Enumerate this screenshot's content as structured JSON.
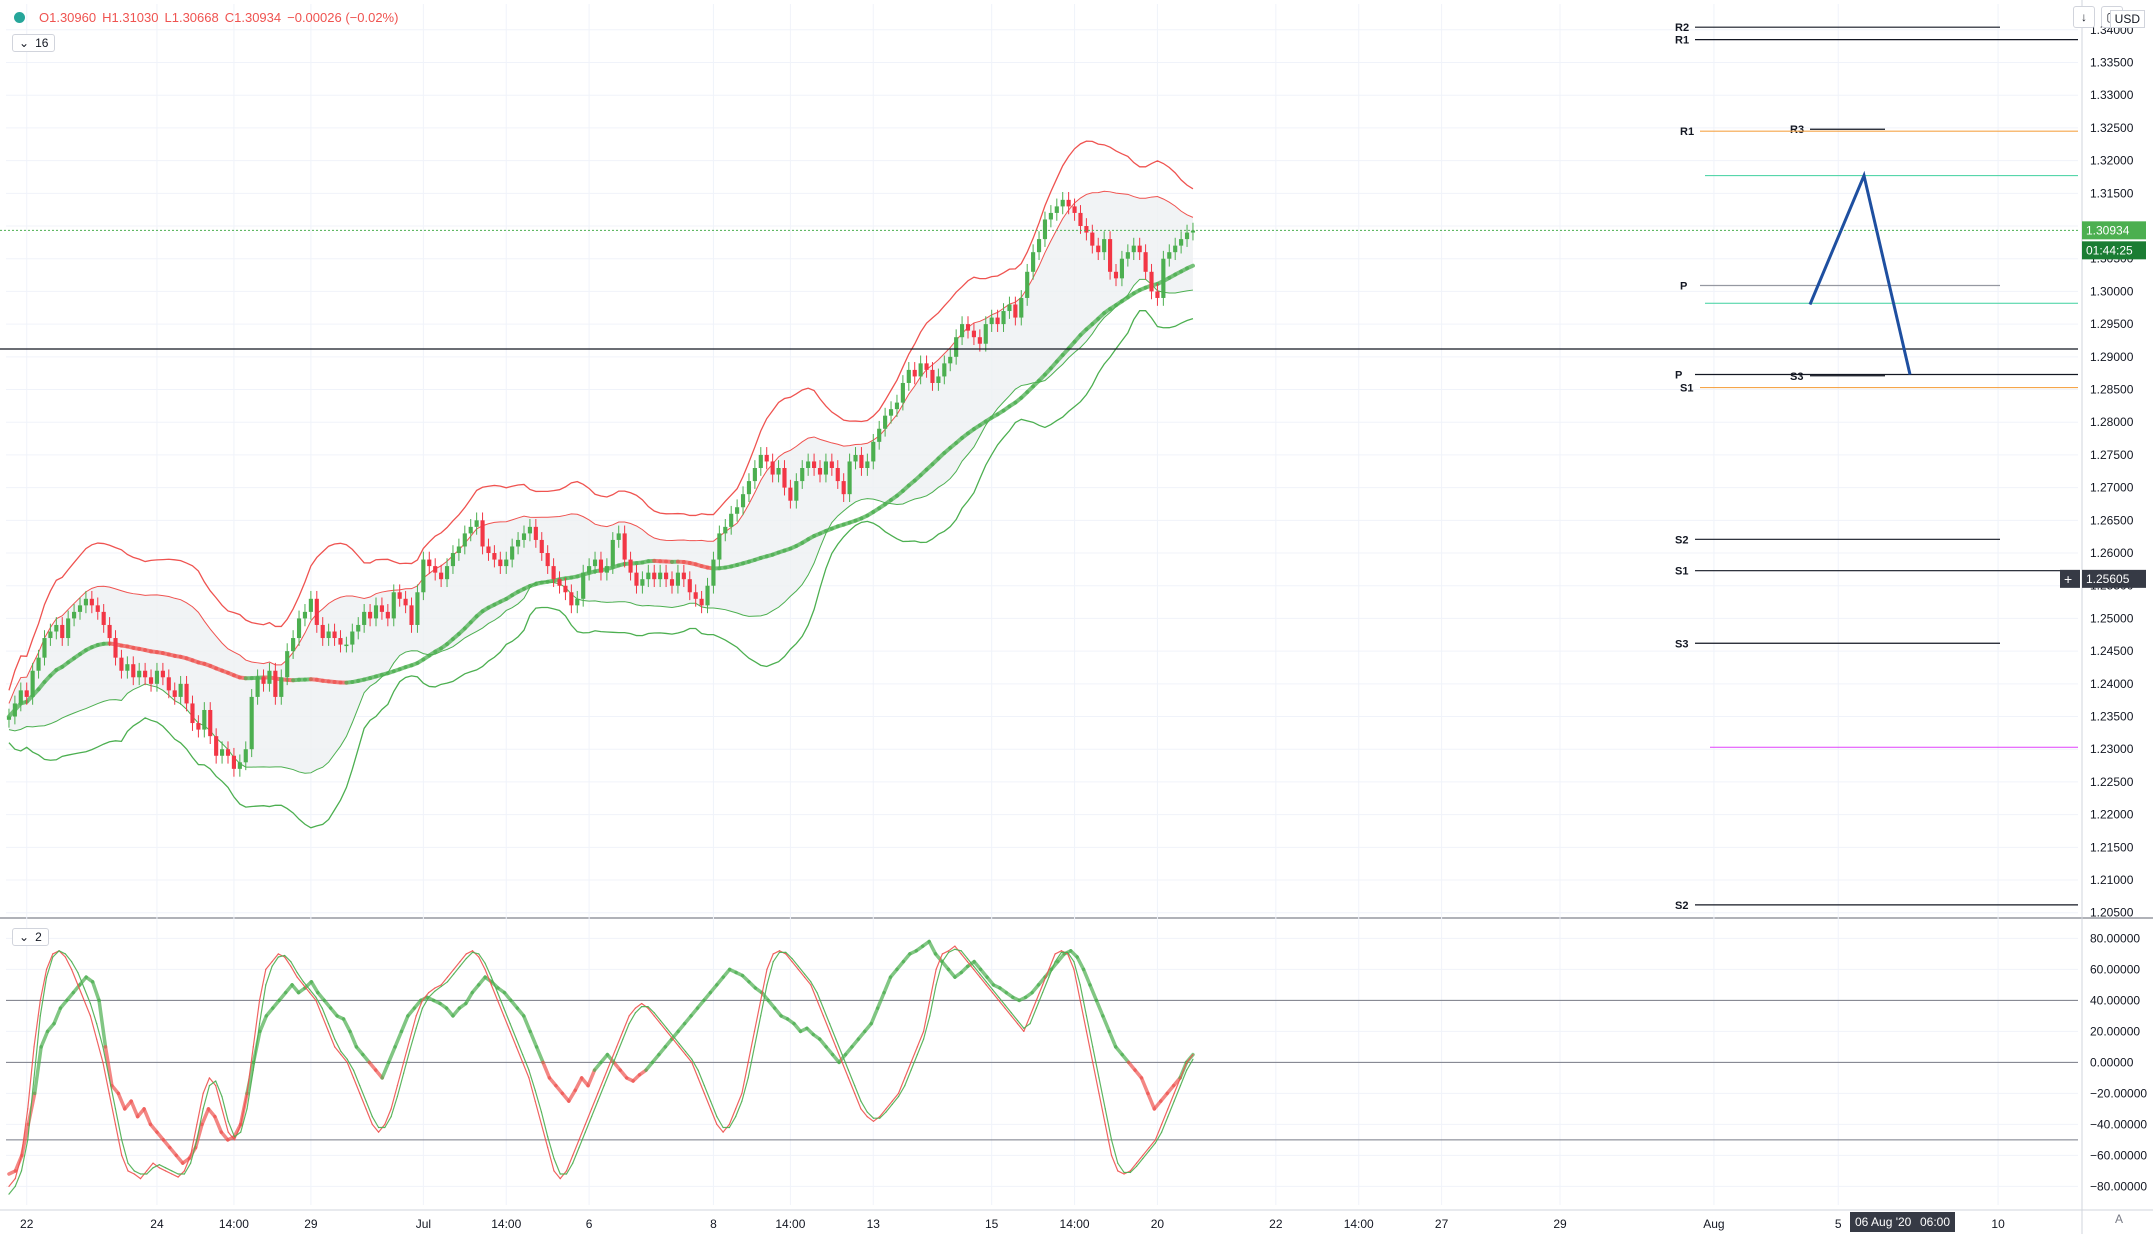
{
  "header": {
    "open": "O1.30960",
    "high": "H1.31030",
    "low": "L1.30668",
    "close": "C1.30934",
    "change": "−0.00026 (−0.02%)",
    "main_pane_tag": "16",
    "osc_pane_tag": "2",
    "currency": "USD",
    "auto_scale_label": "A"
  },
  "price_labels": {
    "last_price": "1.30934",
    "countdown": "01:44:25",
    "crosshair_price": "1.25605"
  },
  "time_labels": {
    "crosshair_time": "06 Aug '20",
    "crosshair_hour": "06:00"
  },
  "colors": {
    "up": "#4caf50",
    "down": "#f23645",
    "band_upper": "#ef5350",
    "band_lower": "#4caf50",
    "pattern": "#1e4fa0",
    "pivot_green": "#3fd19f",
    "pivot_orange": "#f5a54a",
    "pivot_magenta": "#e040fb"
  },
  "chart_data": [
    {
      "type": "candlestick",
      "title": "",
      "y_ticks": [
        "1.34000",
        "1.33500",
        "1.33000",
        "1.32500",
        "1.32000",
        "1.31500",
        "1.31000",
        "1.30500",
        "1.30000",
        "1.29500",
        "1.29000",
        "1.28500",
        "1.28000",
        "1.27500",
        "1.27000",
        "1.26500",
        "1.26000",
        "1.25500",
        "1.25000",
        "1.24500",
        "1.24000",
        "1.23500",
        "1.23000",
        "1.22500",
        "1.22000",
        "1.21500",
        "1.21000",
        "1.20500"
      ],
      "ylim": [
        1.2045,
        1.3415
      ],
      "x_tick_labels": [
        {
          "bar": 3,
          "label": "22"
        },
        {
          "bar": 25,
          "label": "24"
        },
        {
          "bar": 38,
          "label": "14:00"
        },
        {
          "bar": 51,
          "label": "29"
        },
        {
          "bar": 70,
          "label": "Jul"
        },
        {
          "bar": 84,
          "label": "14:00"
        },
        {
          "bar": 98,
          "label": "6"
        },
        {
          "bar": 119,
          "label": "8"
        },
        {
          "bar": 132,
          "label": "14:00"
        },
        {
          "bar": 146,
          "label": "13"
        },
        {
          "bar": 166,
          "label": "15"
        },
        {
          "bar": 180,
          "label": "14:00"
        },
        {
          "bar": 194,
          "label": "20"
        },
        {
          "bar": 214,
          "label": "22"
        },
        {
          "bar": 228,
          "label": "14:00"
        },
        {
          "bar": 242,
          "label": "27"
        },
        {
          "bar": 262,
          "label": "29"
        },
        {
          "bar": 288,
          "label": "Aug"
        },
        {
          "bar": 309,
          "label": "5"
        },
        {
          "bar": 336,
          "label": "10"
        }
      ],
      "candles_close": [
        1.235,
        1.237,
        1.239,
        1.238,
        1.242,
        1.244,
        1.247,
        1.248,
        1.249,
        1.247,
        1.25,
        1.251,
        1.252,
        1.253,
        1.252,
        1.251,
        1.249,
        1.247,
        1.244,
        1.242,
        1.243,
        1.241,
        1.242,
        1.241,
        1.24,
        1.242,
        1.241,
        1.239,
        1.238,
        1.24,
        1.237,
        1.234,
        1.233,
        1.236,
        1.232,
        1.229,
        1.23,
        1.229,
        1.227,
        1.228,
        1.23,
        1.238,
        1.241,
        1.24,
        1.242,
        1.238,
        1.241,
        1.245,
        1.247,
        1.25,
        1.251,
        1.253,
        1.249,
        1.247,
        1.248,
        1.247,
        1.246,
        1.246,
        1.248,
        1.249,
        1.251,
        1.25,
        1.252,
        1.251,
        1.25,
        1.254,
        1.253,
        1.252,
        1.249,
        1.254,
        1.259,
        1.258,
        1.257,
        1.256,
        1.258,
        1.26,
        1.261,
        1.263,
        1.264,
        1.265,
        1.261,
        1.26,
        1.259,
        1.258,
        1.259,
        1.261,
        1.262,
        1.263,
        1.264,
        1.262,
        1.26,
        1.258,
        1.256,
        1.255,
        1.254,
        1.252,
        1.253,
        1.257,
        1.258,
        1.259,
        1.257,
        1.258,
        1.262,
        1.263,
        1.259,
        1.257,
        1.255,
        1.256,
        1.257,
        1.256,
        1.257,
        1.256,
        1.255,
        1.257,
        1.256,
        1.254,
        1.253,
        1.252,
        1.255,
        1.259,
        1.263,
        1.264,
        1.266,
        1.267,
        1.269,
        1.271,
        1.273,
        1.275,
        1.274,
        1.272,
        1.273,
        1.27,
        1.268,
        1.271,
        1.273,
        1.274,
        1.273,
        1.272,
        1.274,
        1.273,
        1.271,
        1.269,
        1.274,
        1.275,
        1.273,
        1.274,
        1.277,
        1.279,
        1.281,
        1.282,
        1.283,
        1.286,
        1.288,
        1.287,
        1.289,
        1.288,
        1.286,
        1.287,
        1.289,
        1.29,
        1.293,
        1.295,
        1.294,
        1.293,
        1.292,
        1.295,
        1.296,
        1.295,
        1.297,
        1.298,
        1.296,
        1.299,
        1.303,
        1.306,
        1.308,
        1.311,
        1.312,
        1.313,
        1.314,
        1.313,
        1.312,
        1.31,
        1.309,
        1.307,
        1.306,
        1.308,
        1.303,
        1.302,
        1.305,
        1.306,
        1.307,
        1.306,
        1.303,
        1.3,
        1.299,
        1.305,
        1.306,
        1.307,
        1.308,
        1.309,
        1.3093
      ],
      "pivots": [
        {
          "label": "R2",
          "value": 1.3404
        },
        {
          "label": "R1",
          "value": 1.3385
        },
        {
          "label": "R3",
          "value": 1.3248
        },
        {
          "label": "R1",
          "value": 1.3245
        },
        {
          "label": "P",
          "value": 1.3009
        },
        {
          "label": "P",
          "value": 1.2873
        },
        {
          "label": "S3",
          "value": 1.2871
        },
        {
          "label": "S1",
          "value": 1.2853
        },
        {
          "label": "S2",
          "value": 1.2621
        },
        {
          "label": "S1",
          "value": 1.2573
        },
        {
          "label": "S3",
          "value": 1.2462
        },
        {
          "label": "S2",
          "value": 1.2062
        }
      ]
    },
    {
      "type": "line",
      "title": "",
      "y_ticks": [
        "80.00000",
        "60.00000",
        "40.00000",
        "20.00000",
        "0.00000",
        "−20.00000",
        "−40.00000",
        "−60.00000",
        "−80.00000"
      ],
      "ylim": [
        -92,
        88
      ],
      "levels": [
        40,
        0,
        -50
      ],
      "series": [
        {
          "values": [
            -72,
            -70,
            -60,
            -40,
            -20,
            10,
            20,
            25,
            35,
            40,
            45,
            50,
            55,
            52,
            40,
            10,
            -15,
            -20,
            -30,
            -25,
            -35,
            -30,
            -40,
            -45,
            -50,
            -55,
            -60,
            -65,
            -62,
            -55,
            -40,
            -30,
            -35,
            -45,
            -50,
            -48,
            -40,
            -20,
            0,
            20,
            30,
            35,
            40,
            45,
            50,
            45,
            48,
            52,
            45,
            40,
            35,
            30,
            28,
            20,
            10,
            5,
            0,
            -5,
            -10,
            0,
            10,
            20,
            30,
            35,
            40,
            42,
            40,
            38,
            35,
            30,
            35,
            38,
            45,
            50,
            55,
            52,
            48,
            45,
            40,
            35,
            30,
            20,
            10,
            0,
            -10,
            -15,
            -20,
            -25,
            -18,
            -10,
            -15,
            -5,
            0,
            5,
            0,
            -5,
            -10,
            -12,
            -8,
            -5,
            0,
            5,
            10,
            15,
            20,
            25,
            30,
            35,
            40,
            45,
            50,
            55,
            60,
            58,
            56,
            52,
            48,
            45,
            40,
            35,
            30,
            28,
            25,
            20,
            22,
            18,
            15,
            10,
            5,
            0,
            5,
            10,
            15,
            20,
            25,
            35,
            45,
            55,
            60,
            65,
            70,
            72,
            75,
            78,
            70,
            65,
            60,
            55,
            58,
            62,
            65,
            60,
            55,
            50,
            48,
            45,
            42,
            40,
            42,
            45,
            50,
            55,
            60,
            65,
            70,
            72,
            68,
            60,
            50,
            40,
            30,
            20,
            10,
            5,
            0,
            -5,
            -10,
            -20,
            -30,
            -25,
            -20,
            -15,
            -10,
            0,
            5
          ]
        },
        {
          "values": [
            -80,
            -75,
            -60,
            -30,
            10,
            40,
            60,
            70,
            72,
            68,
            60,
            50,
            40,
            30,
            15,
            0,
            -20,
            -40,
            -60,
            -70,
            -72,
            -75,
            -70,
            -65,
            -68,
            -70,
            -72,
            -74,
            -70,
            -60,
            -40,
            -20,
            -10,
            -15,
            -30,
            -45,
            -50,
            -40,
            -20,
            10,
            40,
            60,
            65,
            70,
            68,
            62,
            55,
            50,
            45,
            40,
            30,
            20,
            10,
            5,
            0,
            -10,
            -20,
            -30,
            -40,
            -45,
            -40,
            -30,
            -15,
            0,
            15,
            30,
            40,
            45,
            48,
            50,
            55,
            60,
            65,
            70,
            72,
            68,
            60,
            50,
            40,
            30,
            20,
            10,
            0,
            -10,
            -25,
            -40,
            -55,
            -70,
            -75,
            -70,
            -60,
            -50,
            -40,
            -30,
            -20,
            -10,
            0,
            10,
            20,
            30,
            35,
            38,
            35,
            30,
            25,
            20,
            15,
            10,
            5,
            0,
            -10,
            -20,
            -30,
            -40,
            -45,
            -40,
            -30,
            -20,
            0,
            20,
            40,
            60,
            70,
            72,
            70,
            65,
            60,
            55,
            50,
            40,
            30,
            20,
            10,
            0,
            -10,
            -20,
            -30,
            -35,
            -38,
            -35,
            -30,
            -25,
            -20,
            -10,
            0,
            10,
            20,
            40,
            60,
            70,
            72,
            75,
            70,
            65,
            60,
            55,
            50,
            45,
            40,
            35,
            30,
            25,
            20,
            30,
            40,
            50,
            60,
            70,
            72,
            70,
            60,
            40,
            20,
            0,
            -20,
            -40,
            -60,
            -70,
            -72,
            -70,
            -65,
            -60,
            -55,
            -50,
            -40,
            -30,
            -20,
            -10,
            0,
            5
          ]
        },
        {
          "values": [
            -85,
            -80,
            -70,
            -50,
            -10,
            30,
            55,
            68,
            72,
            70,
            65,
            58,
            48,
            38,
            25,
            10,
            -10,
            -30,
            -50,
            -65,
            -70,
            -72,
            -72,
            -68,
            -66,
            -68,
            -70,
            -72,
            -72,
            -65,
            -50,
            -30,
            -15,
            -12,
            -22,
            -38,
            -48,
            -45,
            -30,
            -5,
            25,
            50,
            62,
            68,
            69,
            65,
            58,
            52,
            47,
            42,
            35,
            25,
            15,
            7,
            2,
            -5,
            -15,
            -25,
            -35,
            -42,
            -42,
            -35,
            -22,
            -7,
            8,
            22,
            35,
            42,
            46,
            49,
            52,
            57,
            62,
            67,
            71,
            70,
            64,
            55,
            45,
            35,
            25,
            15,
            5,
            -5,
            -18,
            -32,
            -48,
            -62,
            -72,
            -72,
            -65,
            -55,
            -45,
            -35,
            -25,
            -15,
            -5,
            5,
            15,
            25,
            32,
            36,
            36,
            32,
            27,
            22,
            17,
            12,
            7,
            2,
            -5,
            -15,
            -25,
            -35,
            -42,
            -42,
            -35,
            -25,
            -10,
            10,
            30,
            50,
            65,
            71,
            71,
            67,
            62,
            57,
            52,
            45,
            35,
            25,
            15,
            5,
            -5,
            -15,
            -25,
            -32,
            -36,
            -36,
            -32,
            -27,
            -22,
            -15,
            -5,
            5,
            15,
            30,
            50,
            65,
            71,
            73,
            72,
            67,
            62,
            57,
            52,
            47,
            42,
            37,
            32,
            27,
            22,
            25,
            35,
            45,
            55,
            65,
            71,
            71,
            65,
            50,
            30,
            10,
            -10,
            -30,
            -50,
            -65,
            -71,
            -71,
            -67,
            -62,
            -57,
            -52,
            -45,
            -35,
            -25,
            -15,
            -5,
            2
          ]
        }
      ]
    }
  ]
}
